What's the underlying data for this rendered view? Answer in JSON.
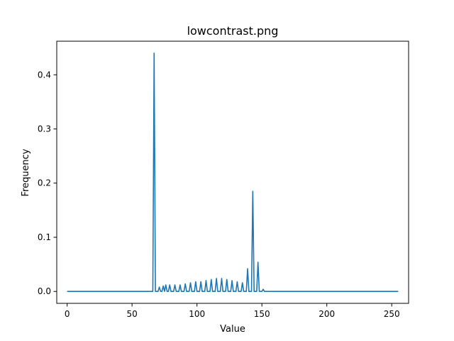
{
  "chart_data": {
    "type": "line",
    "title": "lowcontrast.png",
    "xlabel": "Value",
    "ylabel": "Frequency",
    "xlim": [
      -8,
      263
    ],
    "ylim": [
      -0.022,
      0.462
    ],
    "x_ticks": [
      0,
      50,
      100,
      150,
      200,
      250
    ],
    "x_tick_labels": [
      "0",
      "50",
      "100",
      "150",
      "200",
      "250"
    ],
    "y_ticks": [
      0.0,
      0.1,
      0.2,
      0.3,
      0.4
    ],
    "y_tick_labels": [
      "0.0",
      "0.1",
      "0.2",
      "0.3",
      "0.4"
    ],
    "grid": false,
    "legend": "none",
    "series": [
      {
        "color": "#1f77b4",
        "x": [
          0,
          66,
          67,
          68,
          69,
          70,
          71,
          72,
          73,
          74,
          75,
          76,
          77,
          78,
          79,
          80,
          81,
          82,
          83,
          84,
          85,
          86,
          87,
          88,
          89,
          90,
          91,
          92,
          93,
          94,
          95,
          96,
          97,
          98,
          99,
          100,
          101,
          102,
          103,
          104,
          105,
          106,
          107,
          108,
          109,
          110,
          111,
          112,
          113,
          114,
          115,
          116,
          117,
          118,
          119,
          120,
          121,
          122,
          123,
          124,
          125,
          126,
          127,
          128,
          129,
          130,
          131,
          132,
          133,
          134,
          135,
          136,
          137,
          138,
          139,
          140,
          141,
          142,
          143,
          144,
          145,
          146,
          147,
          148,
          149,
          150,
          151,
          152,
          153,
          154,
          255
        ],
        "values": [
          0.0,
          0.0,
          0.44,
          0.0,
          0.0,
          0.0,
          0.008,
          0.0,
          0.0,
          0.01,
          0.0,
          0.012,
          0.0,
          0.0,
          0.012,
          0.0,
          0.0,
          0.0,
          0.012,
          0.0,
          0.0,
          0.0,
          0.012,
          0.0,
          0.0,
          0.0,
          0.014,
          0.0,
          0.0,
          0.0,
          0.016,
          0.0,
          0.0,
          0.0,
          0.018,
          0.0,
          0.0,
          0.0,
          0.018,
          0.0,
          0.0,
          0.0,
          0.02,
          0.0,
          0.0,
          0.0,
          0.022,
          0.0,
          0.0,
          0.0,
          0.024,
          0.0,
          0.0,
          0.0,
          0.024,
          0.0,
          0.0,
          0.0,
          0.022,
          0.0,
          0.0,
          0.0,
          0.02,
          0.0,
          0.0,
          0.0,
          0.018,
          0.0,
          0.0,
          0.0,
          0.016,
          0.0,
          0.0,
          0.0,
          0.042,
          0.0,
          0.0,
          0.0,
          0.185,
          0.0,
          0.0,
          0.0,
          0.054,
          0.0,
          0.0,
          0.0,
          0.004,
          0.0,
          0.0,
          0.0,
          0.0
        ]
      }
    ]
  }
}
